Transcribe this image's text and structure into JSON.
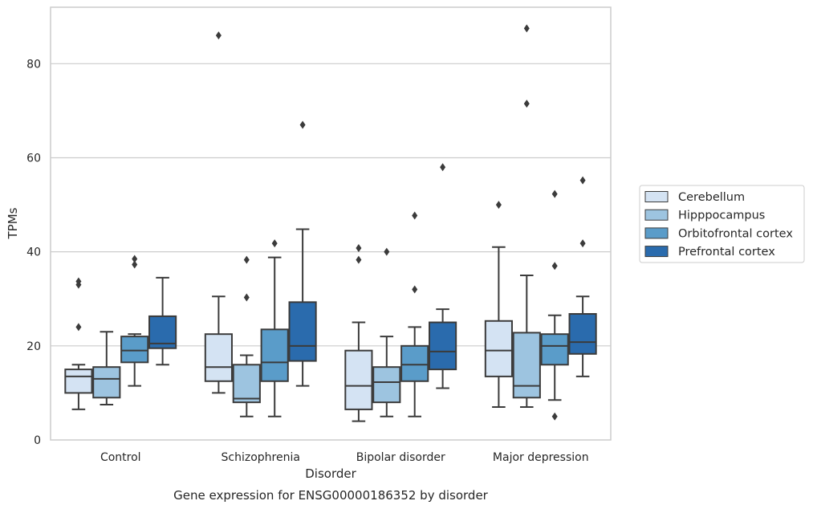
{
  "chart_data": {
    "type": "box",
    "title": "",
    "caption": "Gene expression for ENSG00000186352 by disorder",
    "xlabel": "Disorder",
    "ylabel": "TPMs",
    "categories": [
      "Control",
      "Schizophrenia",
      "Bipolar disorder",
      "Major depression"
    ],
    "ylim": [
      0,
      92
    ],
    "yticks": [
      0,
      20,
      40,
      60,
      80
    ],
    "grid": "horizontal",
    "legend_position": "right",
    "series": [
      {
        "name": "Cerebellum",
        "color": "#d4e3f3",
        "boxes": [
          {
            "whisker_low": 6.5,
            "q1": 10,
            "median": 13.5,
            "q3": 15,
            "whisker_high": 16,
            "outliers": [
              24,
              33,
              33.7
            ]
          },
          {
            "whisker_low": 10,
            "q1": 12.5,
            "median": 15.5,
            "q3": 22.5,
            "whisker_high": 30.5,
            "outliers": [
              86
            ]
          },
          {
            "whisker_low": 4,
            "q1": 6.5,
            "median": 11.5,
            "q3": 19,
            "whisker_high": 25,
            "outliers": [
              38.3,
              40.8
            ]
          },
          {
            "whisker_low": 7,
            "q1": 13.5,
            "median": 19,
            "q3": 25.3,
            "whisker_high": 41,
            "outliers": [
              50
            ]
          }
        ]
      },
      {
        "name": "Hipppocampus",
        "color": "#9dc4e0",
        "boxes": [
          {
            "whisker_low": 7.5,
            "q1": 9,
            "median": 13,
            "q3": 15.5,
            "whisker_high": 23,
            "outliers": []
          },
          {
            "whisker_low": 5,
            "q1": 8,
            "median": 8.8,
            "q3": 16,
            "whisker_high": 18,
            "outliers": [
              30.3,
              38.3
            ]
          },
          {
            "whisker_low": 5,
            "q1": 8,
            "median": 12.3,
            "q3": 15.5,
            "whisker_high": 22,
            "outliers": [
              40
            ]
          },
          {
            "whisker_low": 7,
            "q1": 9,
            "median": 11.5,
            "q3": 22.8,
            "whisker_high": 35,
            "outliers": [
              71.5,
              87.5
            ]
          }
        ]
      },
      {
        "name": "Orbitofrontal cortex",
        "color": "#5a9cc9",
        "boxes": [
          {
            "whisker_low": 11.5,
            "q1": 16.5,
            "median": 19,
            "q3": 22,
            "whisker_high": 22.5,
            "outliers": [
              37.3,
              38.5
            ]
          },
          {
            "whisker_low": 5,
            "q1": 12.5,
            "median": 16.5,
            "q3": 23.5,
            "whisker_high": 38.8,
            "outliers": [
              41.8
            ]
          },
          {
            "whisker_low": 5,
            "q1": 12.5,
            "median": 16,
            "q3": 20,
            "whisker_high": 24,
            "outliers": [
              32,
              47.7
            ]
          },
          {
            "whisker_low": 8.5,
            "q1": 16,
            "median": 20,
            "q3": 22.5,
            "whisker_high": 26.5,
            "outliers": [
              5,
              37,
              52.3
            ]
          }
        ]
      },
      {
        "name": "Prefrontal cortex",
        "color": "#2a6bad",
        "boxes": [
          {
            "whisker_low": 16,
            "q1": 19.5,
            "median": 20.5,
            "q3": 26.3,
            "whisker_high": 34.5,
            "outliers": []
          },
          {
            "whisker_low": 11.5,
            "q1": 16.8,
            "median": 20,
            "q3": 29.3,
            "whisker_high": 44.8,
            "outliers": [
              67
            ]
          },
          {
            "whisker_low": 11,
            "q1": 15,
            "median": 18.8,
            "q3": 25,
            "whisker_high": 27.8,
            "outliers": [
              58
            ]
          },
          {
            "whisker_low": 13.5,
            "q1": 18.3,
            "median": 20.8,
            "q3": 26.8,
            "whisker_high": 30.5,
            "outliers": [
              41.8,
              55.2
            ]
          }
        ]
      }
    ]
  }
}
